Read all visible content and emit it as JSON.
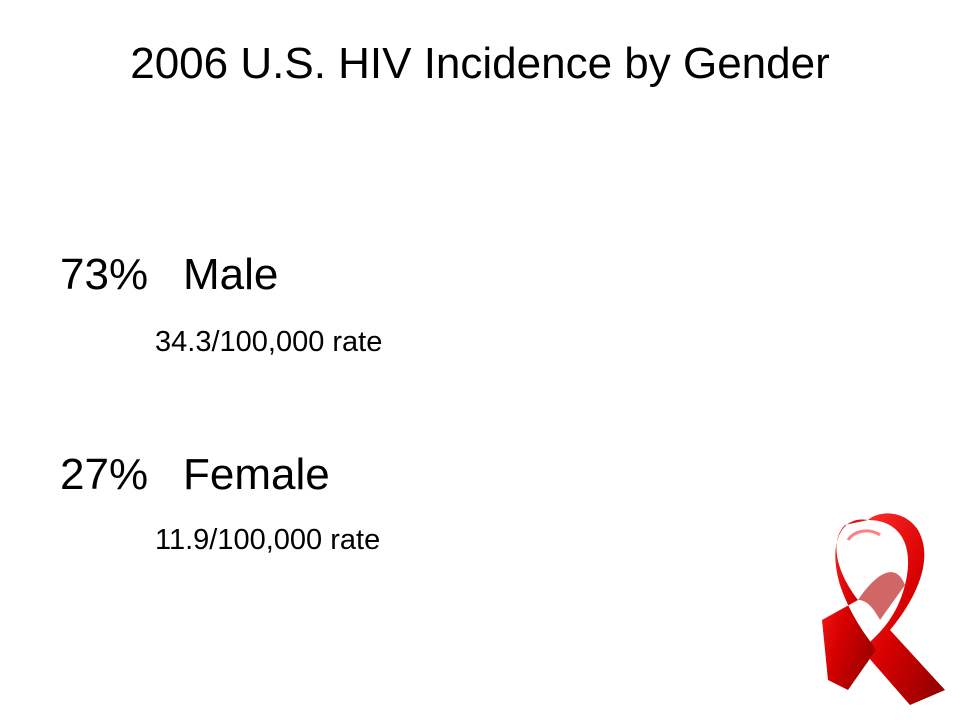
{
  "title": "2006 U.S. HIV Incidence by Gender",
  "items": [
    {
      "percent": "73%",
      "label": "Male",
      "rate": "34.3/100,000 rate"
    },
    {
      "percent": "27%",
      "label": "Female",
      "rate": "11.9/100,000 rate"
    }
  ]
}
